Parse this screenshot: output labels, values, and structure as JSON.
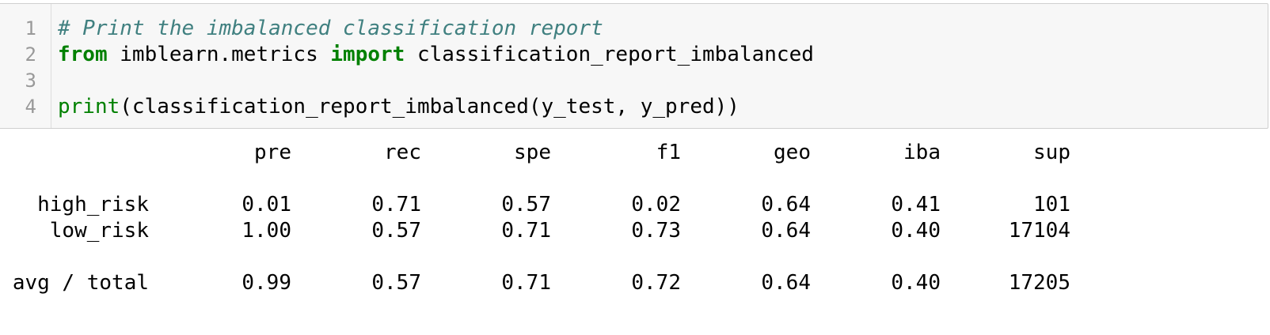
{
  "code_cell": {
    "line_numbers": [
      "1",
      "2",
      "3",
      "4"
    ],
    "line1": {
      "comment": "# Print the imbalanced classification report"
    },
    "line2": {
      "kw_from": "from",
      "module": " imblearn.metrics ",
      "kw_import": "import",
      "name": " classification_report_imbalanced"
    },
    "line3": {
      "text": ""
    },
    "line4": {
      "builtin": "print",
      "rest": "(classification_report_imbalanced(y_test, y_pred))"
    }
  },
  "report": {
    "headers": [
      "pre",
      "rec",
      "spe",
      "f1",
      "geo",
      "iba",
      "sup"
    ],
    "rows": [
      {
        "label": "high_risk",
        "values": [
          "0.01",
          "0.71",
          "0.57",
          "0.02",
          "0.64",
          "0.41",
          "101"
        ]
      },
      {
        "label": "low_risk",
        "values": [
          "1.00",
          "0.57",
          "0.71",
          "0.73",
          "0.64",
          "0.40",
          "17104"
        ]
      }
    ],
    "total": {
      "label": "avg / total",
      "values": [
        "0.99",
        "0.57",
        "0.71",
        "0.72",
        "0.64",
        "0.40",
        "17205"
      ]
    }
  },
  "colors": {
    "comment": "#408080",
    "keyword": "#008000",
    "cell_background": "#f7f7f7",
    "line_number": "#999999"
  }
}
